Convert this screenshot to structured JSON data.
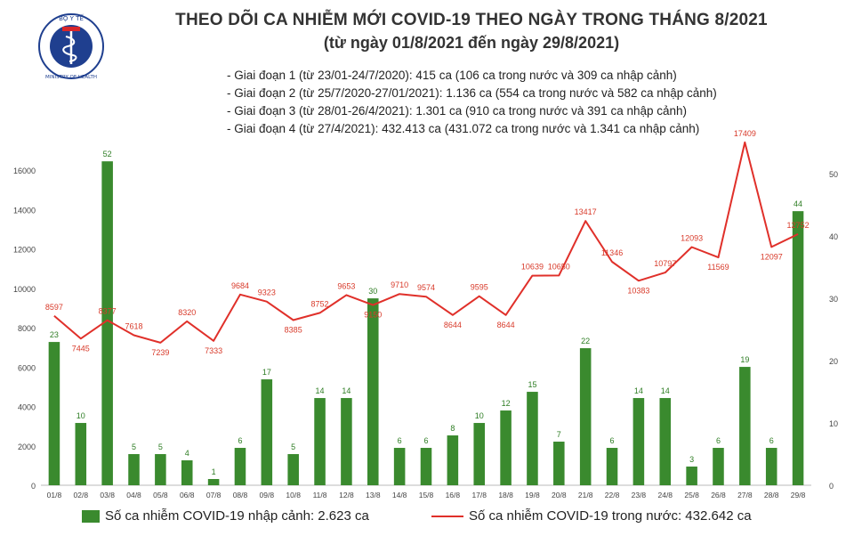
{
  "header": {
    "title": "THEO DÕI CA NHIỄM MỚI COVID-19 THEO NGÀY TRONG THÁNG 8/2021",
    "subtitle": "(từ ngày 01/8/2021 đến ngày 29/8/2021)",
    "stages": [
      "- Giai đoạn 1 (từ 23/01-24/7/2020): 415 ca (106 ca trong nước và 309 ca nhập cảnh)",
      "- Giai đoạn 2 (từ 25/7/2020-27/01/2021): 1.136 ca (554 ca trong nước và 582 ca nhập cảnh)",
      "- Giai đoạn 3 (từ 28/01-26/4/2021): 1.301 ca (910 ca trong nước và 391 ca nhập cảnh)",
      "- Giai đoạn 4 (từ 27/4/2021): 432.413 ca (431.072 ca trong nước và 1.341 ca nhập cảnh)"
    ]
  },
  "logo": {
    "top_text": "BỘ Y TẾ",
    "bottom_text": "MINISTRY OF HEALTH"
  },
  "legend": {
    "bar_label": "Số ca nhiễm COVID-19 nhập cảnh: 2.623 ca",
    "line_label": "Số ca nhiễm COVID-19 trong nước: 432.642 ca"
  },
  "colors": {
    "bar": "#3a8a2e",
    "line": "#e0302a",
    "bar_label": "#2e7d24",
    "line_label": "#d83a2a",
    "axis_text": "#444444"
  },
  "chart_data": {
    "type": "bar",
    "categories": [
      "01/8",
      "02/8",
      "03/8",
      "04/8",
      "05/8",
      "06/8",
      "07/8",
      "08/8",
      "09/8",
      "10/8",
      "11/8",
      "12/8",
      "13/8",
      "14/8",
      "15/8",
      "16/8",
      "17/8",
      "18/8",
      "19/8",
      "20/8",
      "21/8",
      "22/8",
      "23/8",
      "24/8",
      "25/8",
      "26/8",
      "27/8",
      "28/8",
      "29/8"
    ],
    "series": [
      {
        "type": "bar",
        "axis": "right",
        "values": [
          23,
          10,
          52,
          5,
          5,
          4,
          1,
          6,
          17,
          5,
          14,
          14,
          30,
          6,
          6,
          8,
          10,
          12,
          15,
          7,
          22,
          6,
          14,
          14,
          3,
          6,
          19,
          6,
          44
        ]
      },
      {
        "type": "line",
        "axis": "left",
        "values": [
          8597,
          7445,
          8377,
          7618,
          7239,
          8320,
          7333,
          9684,
          9323,
          8385,
          8752,
          9653,
          9150,
          9710,
          9574,
          8644,
          9595,
          8644,
          10639,
          10650,
          13417,
          11346,
          10383,
          10797,
          12093,
          11569,
          17409,
          12097,
          12752
        ]
      }
    ],
    "y_left": {
      "ticks": [
        0,
        2000,
        4000,
        6000,
        8000,
        10000,
        12000,
        14000,
        16000
      ]
    },
    "y_right": {
      "ticks": [
        0,
        10,
        20,
        30,
        40,
        50
      ]
    },
    "legend_position": "bottom"
  }
}
